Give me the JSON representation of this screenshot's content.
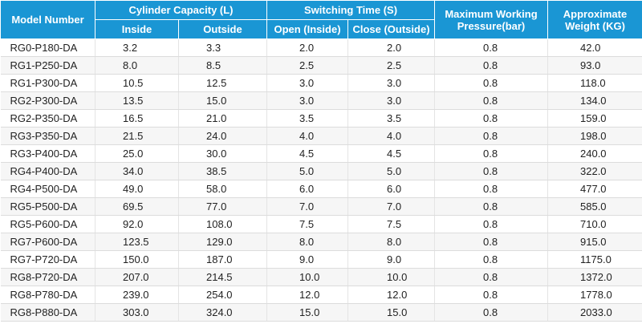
{
  "header": {
    "model": "Model Number",
    "cylinder": "Cylinder Capacity (L)",
    "inside": "Inside",
    "outside": "Outside",
    "switching": "Switching Time (S)",
    "open": "Open (Inside)",
    "close": "Close (Outside)",
    "pressure": "Maximum Working Pressure(bar)",
    "weight": "Approximate Weight (KG)"
  },
  "table": {
    "rows": [
      [
        "RG0-P180-DA",
        "3.2",
        "3.3",
        "2.0",
        "2.0",
        "0.8",
        "42.0"
      ],
      [
        "RG1-P250-DA",
        "8.0",
        "8.5",
        "2.5",
        "2.5",
        "0.8",
        "93.0"
      ],
      [
        "RG1-P300-DA",
        "10.5",
        "12.5",
        "3.0",
        "3.0",
        "0.8",
        "118.0"
      ],
      [
        "RG2-P300-DA",
        "13.5",
        "15.0",
        "3.0",
        "3.0",
        "0.8",
        "134.0"
      ],
      [
        "RG2-P350-DA",
        "16.5",
        "21.0",
        "3.5",
        "3.5",
        "0.8",
        "159.0"
      ],
      [
        "RG3-P350-DA",
        "21.5",
        "24.0",
        "4.0",
        "4.0",
        "0.8",
        "198.0"
      ],
      [
        "RG3-P400-DA",
        "25.0",
        "30.0",
        "4.5",
        "4.5",
        "0.8",
        "240.0"
      ],
      [
        "RG4-P400-DA",
        "34.0",
        "38.5",
        "5.0",
        "5.0",
        "0.8",
        "322.0"
      ],
      [
        "RG4-P500-DA",
        "49.0",
        "58.0",
        "6.0",
        "6.0",
        "0.8",
        "477.0"
      ],
      [
        "RG5-P500-DA",
        "69.5",
        "77.0",
        "7.0",
        "7.0",
        "0.8",
        "585.0"
      ],
      [
        "RG5-P600-DA",
        "92.0",
        "108.0",
        "7.5",
        "7.5",
        "0.8",
        "710.0"
      ],
      [
        "RG7-P600-DA",
        "123.5",
        "129.0",
        "8.0",
        "8.0",
        "0.8",
        "915.0"
      ],
      [
        "RG7-P720-DA",
        "150.0",
        "187.0",
        "9.0",
        "9.0",
        "0.8",
        "1175.0"
      ],
      [
        "RG8-P720-DA",
        "207.0",
        "214.5",
        "10.0",
        "10.0",
        "0.8",
        "1372.0"
      ],
      [
        "RG8-P780-DA",
        "239.0",
        "254.0",
        "12.0",
        "12.0",
        "0.8",
        "1778.0"
      ],
      [
        "RG8-P880-DA",
        "303.0",
        "324.0",
        "15.0",
        "15.0",
        "0.8",
        "2033.0"
      ]
    ]
  }
}
